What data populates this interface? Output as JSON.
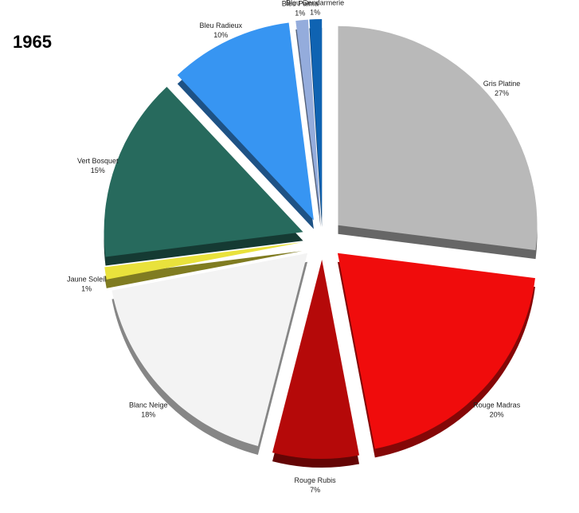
{
  "chart_data": {
    "type": "pie",
    "title": "1965",
    "categories": [
      "Gris Platine",
      "Rouge Madras",
      "Rouge Rubis",
      "Blanc Neige",
      "Jaune Soleil",
      "Vert Bosquet",
      "Bleu Radieux",
      "Bleu Palma",
      "Bleu Gendarmerie"
    ],
    "values": [
      27,
      20,
      7,
      18,
      1,
      15,
      10,
      1,
      1
    ],
    "value_labels": [
      "27%",
      "20%",
      "7%",
      "18%",
      "1%",
      "15%",
      "10%",
      "1%",
      "1%"
    ],
    "colors": [
      "#b9b9b9",
      "#f00c0c",
      "#b50909",
      "#f3f3f3",
      "#e9e23c",
      "#276a5d",
      "#3795f2",
      "#94acdc",
      "#0f63b2"
    ]
  }
}
